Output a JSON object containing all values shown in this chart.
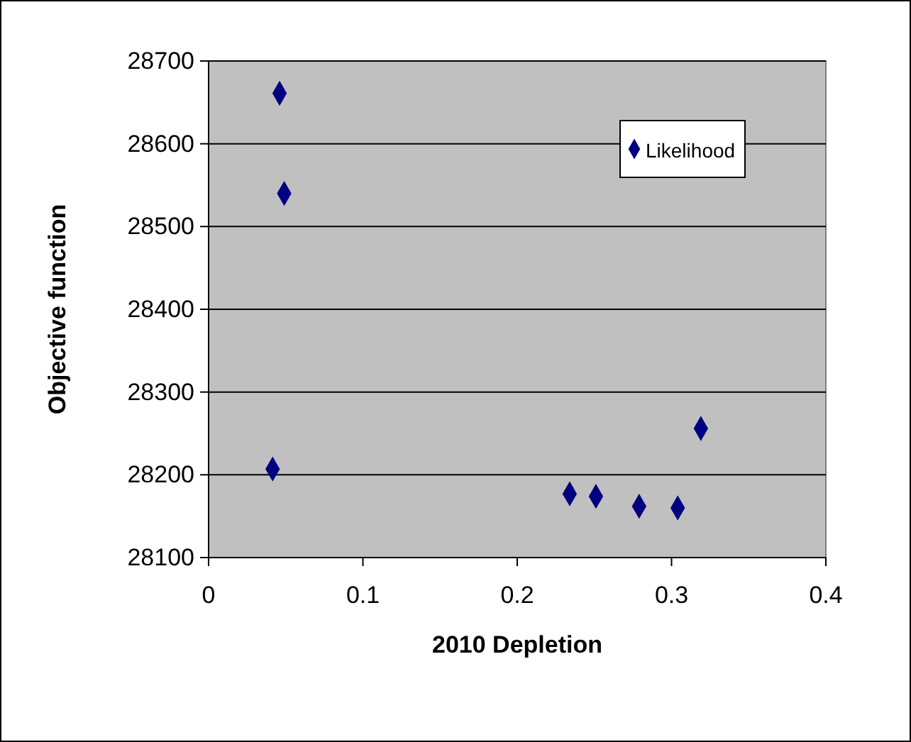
{
  "chart_data": {
    "type": "scatter",
    "xlabel": "2010 Depletion",
    "ylabel": "Objective function",
    "xlim": [
      0,
      0.4
    ],
    "xticks": [
      0,
      0.1,
      0.2,
      0.3,
      0.4
    ],
    "ylim": [
      28100,
      28700
    ],
    "yticks": [
      28100,
      28200,
      28300,
      28400,
      28500,
      28600,
      28700
    ],
    "grid": "y",
    "legend": "top right",
    "marker": "diamond",
    "series": [
      {
        "name": "Likelihood",
        "color": "#000080",
        "x": [
          0.046,
          0.049,
          0.0415,
          0.234,
          0.251,
          0.279,
          0.304,
          0.319
        ],
        "values": [
          28661,
          28540,
          28207,
          28177,
          28174,
          28162,
          28160,
          28256
        ]
      }
    ]
  }
}
